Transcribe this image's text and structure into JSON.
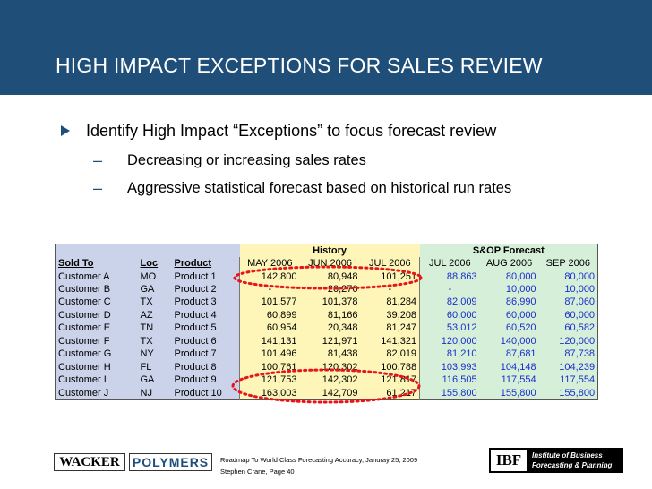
{
  "slide": {
    "title": "HIGH IMPACT EXCEPTIONS FOR SALES REVIEW",
    "bullet": "Identify High Impact “Exceptions” to focus forecast review",
    "sub_bullets": [
      "Decreasing or increasing sales rates",
      "Aggressive statistical forecast based on historical run rates"
    ],
    "dash": "–"
  },
  "table": {
    "group_history": "History",
    "group_forecast": "S&OP Forecast",
    "col_sold_to": "Sold To",
    "col_loc": "Loc",
    "col_product": "Product",
    "history_months": [
      "MAY 2006",
      "JUN 2006",
      "JUL 2006"
    ],
    "forecast_months": [
      "JUL 2006",
      "AUG 2006",
      "SEP 2006"
    ],
    "rows": [
      {
        "sold_to": "Customer A",
        "loc": "MO",
        "product": "Product 1",
        "h1": "142,800",
        "h2": "80,948",
        "h3": "101,251",
        "f1": "88,863",
        "f2": "80,000",
        "f3": "80,000"
      },
      {
        "sold_to": "Customer B",
        "loc": "GA",
        "product": "Product 2",
        "h1": "-",
        "h2": "20,276",
        "h3": "-",
        "f1": "-",
        "f2": "10,000",
        "f3": "10,000"
      },
      {
        "sold_to": "Customer C",
        "loc": "TX",
        "product": "Product 3",
        "h1": "101,577",
        "h2": "101,378",
        "h3": "81,284",
        "f1": "82,009",
        "f2": "86,990",
        "f3": "87,060"
      },
      {
        "sold_to": "Customer D",
        "loc": "AZ",
        "product": "Product 4",
        "h1": "60,899",
        "h2": "81,166",
        "h3": "39,208",
        "f1": "60,000",
        "f2": "60,000",
        "f3": "60,000"
      },
      {
        "sold_to": "Customer E",
        "loc": "TN",
        "product": "Product 5",
        "h1": "60,954",
        "h2": "20,348",
        "h3": "81,247",
        "f1": "53,012",
        "f2": "60,520",
        "f3": "60,582"
      },
      {
        "sold_to": "Customer F",
        "loc": "TX",
        "product": "Product 6",
        "h1": "141,131",
        "h2": "121,971",
        "h3": "141,321",
        "f1": "120,000",
        "f2": "140,000",
        "f3": "120,000"
      },
      {
        "sold_to": "Customer G",
        "loc": "NY",
        "product": "Product 7",
        "h1": "101,496",
        "h2": "81,438",
        "h3": "82,019",
        "f1": "81,210",
        "f2": "87,681",
        "f3": "87,738"
      },
      {
        "sold_to": "Customer H",
        "loc": "FL",
        "product": "Product 8",
        "h1": "100,761",
        "h2": "120,302",
        "h3": "100,788",
        "f1": "103,993",
        "f2": "104,148",
        "f3": "104,239"
      },
      {
        "sold_to": "Customer I",
        "loc": "GA",
        "product": "Product 9",
        "h1": "121,753",
        "h2": "142,302",
        "h3": "121,817",
        "f1": "116,505",
        "f2": "117,554",
        "f3": "117,554"
      },
      {
        "sold_to": "Customer J",
        "loc": "NJ",
        "product": "Product 10",
        "h1": "163,003",
        "h2": "142,709",
        "h3": "61,217",
        "f1": "155,800",
        "f2": "155,800",
        "f3": "155,800"
      }
    ],
    "highlight_color": "#e8141a"
  },
  "footer": {
    "logo_left_1": "WACKER",
    "logo_left_2": "POLYMERS",
    "line1": "Roadmap To World Class Forecasting Accuracy, Januray 25, 2009",
    "line2": "Stephen Crane, Page 40",
    "ibf_mark": "IBF",
    "ibf_line1": "Institute of Business",
    "ibf_line2": "Forecasting & Planning"
  },
  "colors": {
    "header_bg": "#1f4e79",
    "history_bg": "#fdf6b8",
    "forecast_bg": "#d6efd9",
    "left_bg": "#cbd3ea",
    "forecast_text": "#1a2ecc"
  }
}
